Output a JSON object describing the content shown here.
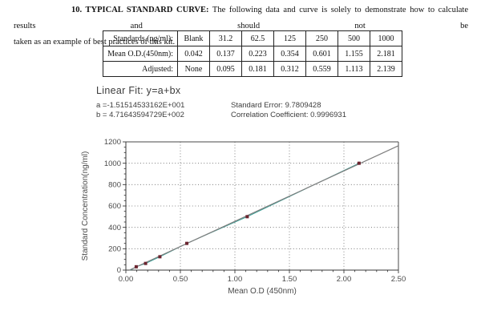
{
  "paragraph": {
    "heading": "10. TYPICAL STANDARD CURVE:",
    "line1_rest": " The following data and curve is solely to demonstrate how to calculate results and should not be",
    "line2": "taken as an example of best practices of this kit."
  },
  "table": {
    "rows": [
      {
        "cells": [
          "Standards (ng/ml):",
          "Blank",
          "31.2",
          "62.5",
          "125",
          "250",
          "500",
          "1000"
        ]
      },
      {
        "cells": [
          "Mean O.D.(450nm):",
          "0.042",
          "0.137",
          "0.223",
          "0.354",
          "0.601",
          "1.155",
          "2.181"
        ]
      },
      {
        "cells": [
          "Adjusted:",
          "None",
          "0.095",
          "0.181",
          "0.312",
          "0.559",
          "1.113",
          "2.139"
        ]
      }
    ]
  },
  "fit": {
    "title": "Linear Fit: y=a+bx",
    "a_label": "a =-1.51514533162E+001",
    "b_label": "b = 4.71643594729E+002",
    "standard_error": "Standard Error: 9.7809428",
    "correlation": "Correlation Coefficient: 0.9996931"
  },
  "chart_data": {
    "type": "scatter",
    "title": "",
    "xlabel": "Mean O.D (450nm)",
    "ylabel": "Standard Concentration(ng/ml)",
    "xlim": [
      0,
      2.5
    ],
    "ylim": [
      0,
      1200
    ],
    "xticks": [
      0,
      0.5,
      1,
      1.5,
      2,
      2.5
    ],
    "x_tick_labels": [
      "0.00",
      "0.50",
      "1.00",
      "1.50",
      "2.00",
      "2.50"
    ],
    "yticks": [
      0,
      200,
      400,
      600,
      800,
      1000,
      1200
    ],
    "y_tick_labels": [
      "0",
      "200",
      "400",
      "600",
      "800",
      "1000",
      "1200"
    ],
    "x_minor_step": 0.1,
    "y_minor_step": 50,
    "grid": true,
    "legend": "none",
    "fit": {
      "a": -15.1514533162,
      "b": 471.643594729
    },
    "blank_point": {
      "x": 0.042,
      "y": 0
    },
    "points": [
      {
        "x": 0.095,
        "y": 31.2
      },
      {
        "x": 0.181,
        "y": 62.5
      },
      {
        "x": 0.312,
        "y": 125
      },
      {
        "x": 0.559,
        "y": 250
      },
      {
        "x": 1.113,
        "y": 500
      },
      {
        "x": 2.139,
        "y": 1000
      }
    ],
    "colors": {
      "fit_line": "#7f7f7f",
      "data_line": "#2f9e94",
      "marker": "#6b2530",
      "grid": "#666666",
      "axis": "#3a3a3a",
      "border": "#4a4a4a",
      "text": "#4a4a4a"
    }
  }
}
